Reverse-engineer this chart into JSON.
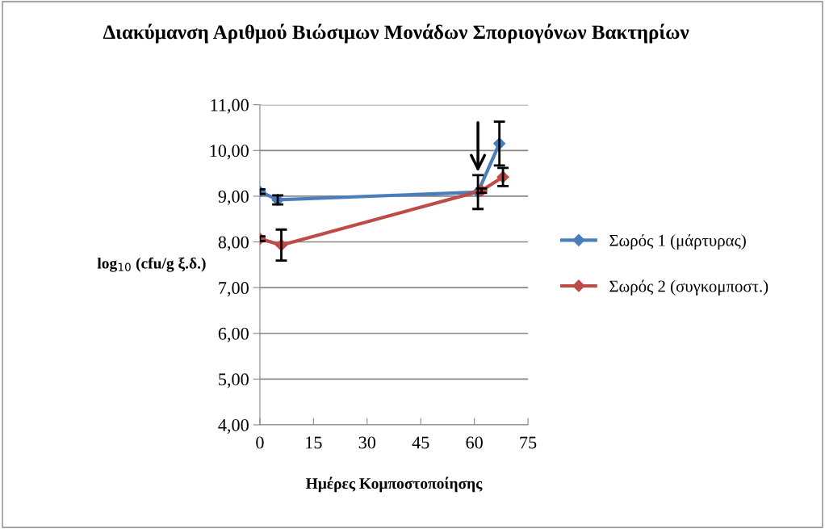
{
  "chart_data": {
    "type": "line",
    "title": "Διακύμανση Αριθμού Βιώσιμων Μονάδων Σποριογόνων Βακτηρίων",
    "xlabel": "Ημέρες Κομποστοποίησης",
    "ylabel": "log$_{10}$ (cfu/g ξ.δ.)",
    "series": [
      {
        "name": "Σωρός 1 (μάρτυρας)",
        "color": "#4a7ebb",
        "x": [
          0,
          5,
          61,
          67
        ],
        "values": [
          9.1,
          8.92,
          9.09,
          10.15
        ],
        "errors": [
          0.05,
          0.1,
          0.37,
          0.48
        ]
      },
      {
        "name": "Σωρός 2 (συγκομποστ.)",
        "color": "#be4b48",
        "x": [
          0,
          6,
          62,
          68
        ],
        "values": [
          8.07,
          7.93,
          9.12,
          9.42
        ],
        "errors": [
          0.05,
          0.34,
          0.05,
          0.2
        ]
      }
    ],
    "xlim": [
      0,
      75
    ],
    "xticks": [
      0,
      15,
      30,
      45,
      60,
      75
    ],
    "ylim": [
      4,
      11
    ],
    "yticks": [
      {
        "value": 4,
        "label": "4,00"
      },
      {
        "value": 5,
        "label": "5,00"
      },
      {
        "value": 6,
        "label": "6,00"
      },
      {
        "value": 7,
        "label": "7,00"
      },
      {
        "value": 8,
        "label": "8,00"
      },
      {
        "value": 9,
        "label": "9,00"
      },
      {
        "value": 10,
        "label": "10,00"
      },
      {
        "value": 11,
        "label": "11,00"
      }
    ],
    "grid": "y",
    "legend": "right",
    "marker": "diamond",
    "line_style": "solid"
  }
}
